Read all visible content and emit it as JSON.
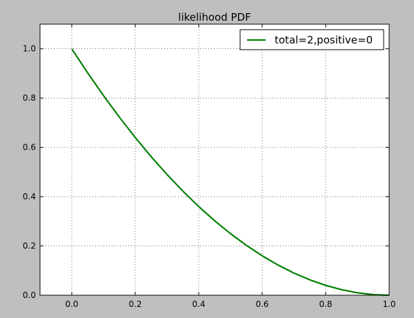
{
  "chart_data": {
    "type": "line",
    "title": "likelihood PDF",
    "xlabel": "",
    "ylabel": "",
    "xlim": [
      -0.1,
      1.0
    ],
    "ylim": [
      0.0,
      1.1
    ],
    "grid": true,
    "legend_position": "top-right",
    "xticks": [
      0.0,
      0.2,
      0.4,
      0.6,
      0.8,
      1.0
    ],
    "xtick_labels": [
      "0.0",
      "0.2",
      "0.4",
      "0.6",
      "0.8",
      "1.0"
    ],
    "yticks": [
      0.0,
      0.2,
      0.4,
      0.6,
      0.8,
      1.0
    ],
    "ytick_labels": [
      "0.0",
      "0.2",
      "0.4",
      "0.6",
      "0.8",
      "1.0"
    ],
    "series": [
      {
        "name": "total=2,positive=0",
        "color": "#008000",
        "x": [
          0.0,
          0.05,
          0.1,
          0.15,
          0.2,
          0.25,
          0.3,
          0.35,
          0.4,
          0.45,
          0.5,
          0.55,
          0.6,
          0.65,
          0.7,
          0.75,
          0.8,
          0.85,
          0.9,
          0.95,
          1.0
        ],
        "y": [
          1.0,
          0.9025,
          0.81,
          0.7225,
          0.64,
          0.5625,
          0.49,
          0.4225,
          0.36,
          0.3025,
          0.25,
          0.2025,
          0.16,
          0.1225,
          0.09,
          0.0625,
          0.04,
          0.0225,
          0.01,
          0.0025,
          0.0
        ]
      }
    ]
  }
}
